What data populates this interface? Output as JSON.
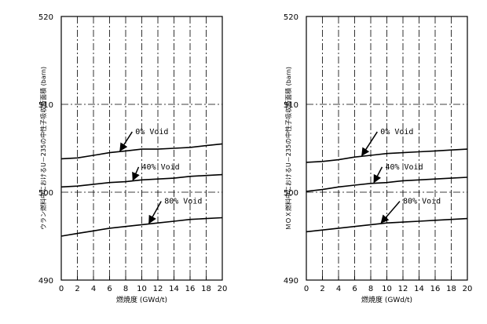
{
  "chart_data": [
    {
      "type": "line",
      "ylabel": "ウラン燃料中におけるU－235の中性子吸収断面積 (barn)",
      "xlabel": "燃焼度 (GWd/t)",
      "xlim": [
        0,
        20
      ],
      "ylim": [
        490,
        520
      ],
      "x_ticks": [
        "0",
        "2",
        "4",
        "6",
        "8",
        "10",
        "12",
        "14",
        "16",
        "18",
        "20"
      ],
      "y_ticks": [
        "490",
        "500",
        "510",
        "520"
      ],
      "grid": true,
      "series": [
        {
          "name": "0% Void",
          "x": [
            0,
            2,
            4,
            6,
            8,
            10,
            12,
            14,
            16,
            18,
            20
          ],
          "values": [
            503.8,
            503.9,
            504.2,
            504.5,
            504.7,
            504.9,
            504.9,
            505.0,
            505.1,
            505.3,
            505.5
          ]
        },
        {
          "name": "40% Void",
          "x": [
            0,
            2,
            4,
            6,
            8,
            10,
            12,
            14,
            16,
            18,
            20
          ],
          "values": [
            500.6,
            500.7,
            500.9,
            501.1,
            501.2,
            501.4,
            501.5,
            501.6,
            501.8,
            501.9,
            502.0
          ]
        },
        {
          "name": "80% Void",
          "x": [
            0,
            2,
            4,
            6,
            8,
            10,
            12,
            14,
            16,
            18,
            20
          ],
          "values": [
            495.0,
            495.3,
            495.6,
            495.9,
            496.1,
            496.3,
            496.5,
            496.7,
            496.9,
            497.0,
            497.1
          ]
        }
      ],
      "annotations": [
        {
          "text": "0% Void",
          "series": 0,
          "at_x": 7.2,
          "label_x": 9.2,
          "label_y": 506.6
        },
        {
          "text": "40% Void",
          "series": 1,
          "at_x": 8.8,
          "label_x": 10.0,
          "label_y": 502.6
        },
        {
          "text": "80% Void",
          "series": 2,
          "at_x": 10.8,
          "label_x": 12.8,
          "label_y": 498.7
        }
      ]
    },
    {
      "type": "line",
      "ylabel": "ＭＯＸ燃料中におけるU－235の中性子吸収断面積 (barn)",
      "xlabel": "燃焼度 (GWd/t)",
      "xlim": [
        0,
        20
      ],
      "ylim": [
        490,
        520
      ],
      "x_ticks": [
        "0",
        "2",
        "4",
        "6",
        "8",
        "10",
        "12",
        "14",
        "16",
        "18",
        "20"
      ],
      "y_ticks": [
        "490",
        "500",
        "510",
        "520"
      ],
      "grid": true,
      "series": [
        {
          "name": "0% Void",
          "x": [
            0,
            2,
            4,
            6,
            8,
            10,
            12,
            14,
            16,
            18,
            20
          ],
          "values": [
            503.4,
            503.5,
            503.7,
            504.0,
            504.2,
            504.4,
            504.5,
            504.6,
            504.7,
            504.8,
            504.9
          ]
        },
        {
          "name": "40% Void",
          "x": [
            0,
            2,
            4,
            6,
            8,
            10,
            12,
            14,
            16,
            18,
            20
          ],
          "values": [
            500.1,
            500.3,
            500.6,
            500.8,
            501.0,
            501.1,
            501.3,
            501.4,
            501.5,
            501.6,
            501.7
          ]
        },
        {
          "name": "80% Void",
          "x": [
            0,
            2,
            4,
            6,
            8,
            10,
            12,
            14,
            16,
            18,
            20
          ],
          "values": [
            495.5,
            495.7,
            495.9,
            496.1,
            496.3,
            496.5,
            496.6,
            496.7,
            496.8,
            496.9,
            497.0
          ]
        }
      ],
      "annotations": [
        {
          "text": "0% Void",
          "series": 0,
          "at_x": 6.8,
          "label_x": 9.2,
          "label_y": 506.6
        },
        {
          "text": "40% Void",
          "series": 1,
          "at_x": 8.3,
          "label_x": 9.8,
          "label_y": 502.6
        },
        {
          "text": "80% Void",
          "series": 2,
          "at_x": 9.2,
          "label_x": 12.0,
          "label_y": 498.7
        }
      ]
    }
  ]
}
